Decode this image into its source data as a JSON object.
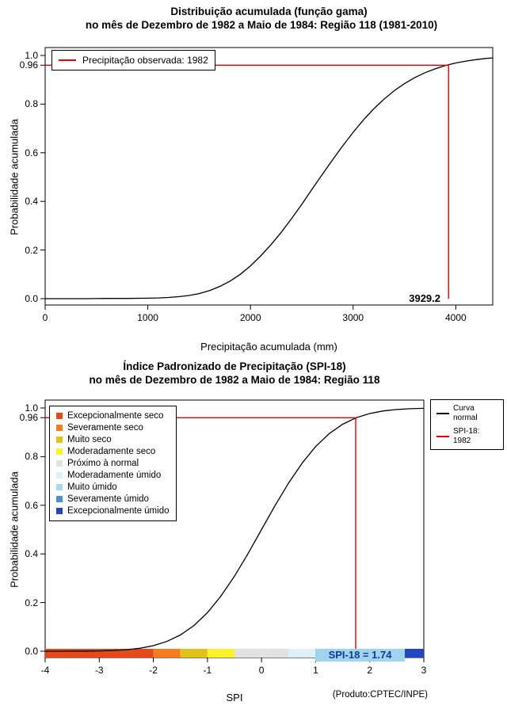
{
  "chart_data": [
    {
      "type": "line",
      "title": "Distribuição acumulada (função gama)",
      "subtitle": "no mês de Dezembro de 1982 a Maio de 1984: Região 118 (1981-2010)",
      "xlabel": "Precipitação acumulada (mm)",
      "ylabel": "Probabilidade acumulada",
      "xlim": [
        0,
        4360
      ],
      "ylim": [
        0,
        1
      ],
      "xticks": [
        "0",
        "1000",
        "2000",
        "3000",
        "4000"
      ],
      "yticks": [
        "0.0",
        "0.2",
        "0.4",
        "0.6",
        "0.8",
        "1.0",
        "0.96"
      ],
      "grid": false,
      "legend_position": "top-left",
      "legend": [
        {
          "label": "Precipitação observada: 1982",
          "color": "#e00000"
        }
      ],
      "series": [
        {
          "name": "Distribuição acumulada (função gama)",
          "color": "#000000",
          "x": [
            0,
            200,
            400,
            600,
            800,
            1000,
            1100,
            1200,
            1300,
            1400,
            1500,
            1600,
            1700,
            1800,
            1900,
            2000,
            2100,
            2200,
            2300,
            2400,
            2500,
            2600,
            2700,
            2800,
            2900,
            3000,
            3100,
            3200,
            3300,
            3400,
            3500,
            3600,
            3700,
            3800,
            3900,
            4000,
            4100,
            4200,
            4300,
            4360
          ],
          "y": [
            0,
            0,
            0,
            0.001,
            0.001,
            0.002,
            0.003,
            0.005,
            0.008,
            0.013,
            0.021,
            0.033,
            0.05,
            0.072,
            0.1,
            0.135,
            0.176,
            0.222,
            0.273,
            0.329,
            0.388,
            0.45,
            0.511,
            0.571,
            0.629,
            0.684,
            0.735,
            0.78,
            0.82,
            0.855,
            0.884,
            0.909,
            0.929,
            0.945,
            0.959,
            0.969,
            0.977,
            0.983,
            0.988,
            0.99
          ]
        }
      ],
      "marker": {
        "x": 3929.2,
        "y": 0.96,
        "label": "3929.2",
        "color": "#e00000"
      }
    },
    {
      "type": "line",
      "title": "Índice Padronizado de Precipitação (SPI-18)",
      "subtitle": "no mês de Dezembro de 1982 a Maio de 1984: Região 118",
      "xlabel": "SPI",
      "ylabel": "Probabilidade acumulada",
      "xlim": [
        -4,
        3
      ],
      "ylim": [
        0,
        1
      ],
      "xticks": [
        "-4",
        "-3",
        "-2",
        "-1",
        "0",
        "1",
        "2",
        "3"
      ],
      "yticks": [
        "0.0",
        "0.2",
        "0.4",
        "0.6",
        "0.8",
        "1.0",
        "0.96"
      ],
      "grid": false,
      "legend_position": "top-right",
      "legend": [
        {
          "label": "Curva\nnormal",
          "color": "#000000"
        },
        {
          "label": "SPI-18: 1982",
          "color": "#e00000"
        }
      ],
      "series": [
        {
          "name": "Curva normal",
          "color": "#000000",
          "x": [
            -4,
            -3.75,
            -3.5,
            -3.25,
            -3,
            -2.75,
            -2.5,
            -2.25,
            -2,
            -1.75,
            -1.5,
            -1.25,
            -1,
            -0.75,
            -0.5,
            -0.25,
            0,
            0.25,
            0.5,
            0.75,
            1,
            1.25,
            1.5,
            1.75,
            2,
            2.25,
            2.5,
            2.75,
            3
          ],
          "y": [
            0.0,
            0.0001,
            0.0002,
            0.0006,
            0.0013,
            0.003,
            0.0062,
            0.0122,
            0.0228,
            0.0401,
            0.0668,
            0.1056,
            0.1587,
            0.2266,
            0.3085,
            0.4013,
            0.5,
            0.5987,
            0.6915,
            0.7734,
            0.8413,
            0.8944,
            0.9332,
            0.9599,
            0.9772,
            0.9878,
            0.9938,
            0.997,
            0.9987
          ]
        }
      ],
      "marker": {
        "x": 1.74,
        "y": 0.96,
        "label": "SPI-18 = 1.74",
        "color": "#e00000",
        "label_bg": "#9fd4ee",
        "label_color": "#123a9e"
      },
      "categories": [
        {
          "label": "Excepcionalmente seco",
          "color": "#e8491a",
          "range": [
            -4,
            -2
          ]
        },
        {
          "label": "Severamente seco",
          "color": "#f57d20",
          "range": [
            -2,
            -1.5
          ]
        },
        {
          "label": "Muito seco",
          "color": "#e2c218",
          "range": [
            -1.5,
            -1
          ]
        },
        {
          "label": "Moderadamente seco",
          "color": "#fef12a",
          "range": [
            -1,
            -0.5
          ]
        },
        {
          "label": "Próximo à normal",
          "color": "#e2e2e2",
          "range": [
            -0.5,
            0.5
          ]
        },
        {
          "label": "Moderadamente úmido",
          "color": "#ddf1f7",
          "range": [
            0.5,
            1
          ]
        },
        {
          "label": "Muito úmido",
          "color": "#a6daf0",
          "range": [
            1,
            1.5
          ]
        },
        {
          "label": "Severamente úmido",
          "color": "#4d8fce",
          "range": [
            1.5,
            2
          ]
        },
        {
          "label": "Excepcionalmente úmido",
          "color": "#2146c0",
          "range": [
            2,
            3
          ]
        }
      ],
      "footnote": "(Produto:CPTEC/INPE)"
    }
  ]
}
